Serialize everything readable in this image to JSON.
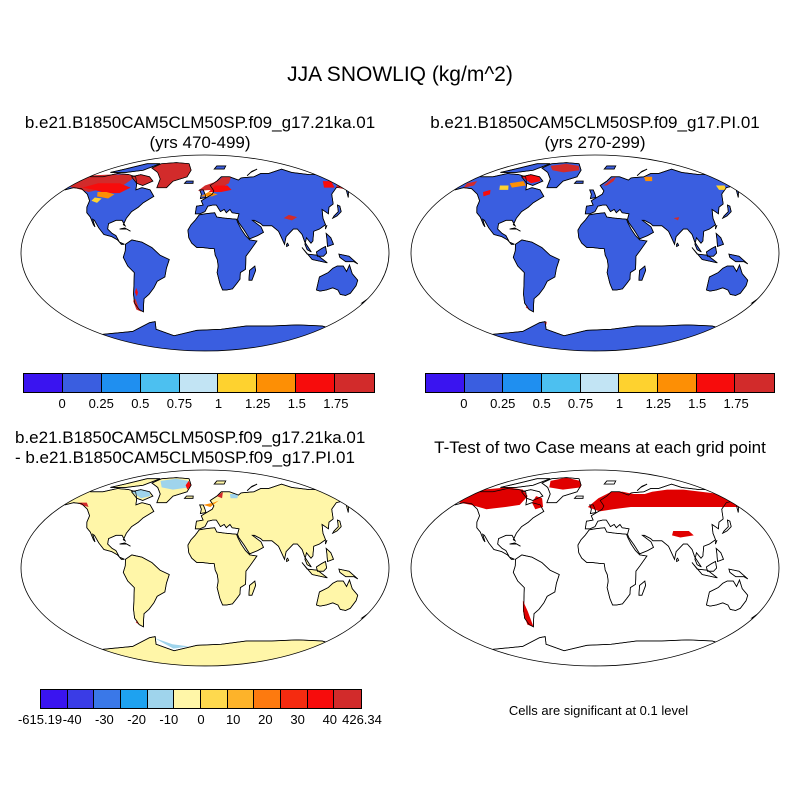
{
  "title": "JJA SNOWLIQ (kg/m^2)",
  "panels": {
    "top_left": {
      "title_line1": "b.e21.B1850CAM5CLM50SP.f09_g17.21ka.01",
      "title_line2": "(yrs 470-499)"
    },
    "top_right": {
      "title_line1": "b.e21.B1850CAM5CLM50SP.f09_g17.PI.01",
      "title_line2": "(yrs 270-299)"
    },
    "bottom_left": {
      "title_line1": "b.e21.B1850CAM5CLM50SP.f09_g17.21ka.01",
      "title_line2": "- b.e21.B1850CAM5CLM50SP.f09_g17.PI.01"
    },
    "bottom_right": {
      "title_line1": "T-Test of two Case means at each grid point",
      "note": "Cells are significant at 0.1 level"
    }
  },
  "colorbars": {
    "absolute": {
      "colors": [
        "#3a14f0",
        "#3a5ee0",
        "#1f8ff0",
        "#4cc0f0",
        "#c2e4f4",
        "#fed22f",
        "#fd8f05",
        "#f70c0c",
        "#d22b2b"
      ],
      "labels": [
        "0",
        "0.25",
        "0.5",
        "0.75",
        "1",
        "1.25",
        "1.5",
        "1.75"
      ]
    },
    "difference": {
      "colors": [
        "#3a14f0",
        "#3a3ce6",
        "#3a78e8",
        "#1ea2f0",
        "#9fd4ec",
        "#fff6a8",
        "#fed94e",
        "#fdb32a",
        "#fd7a0f",
        "#f52b10",
        "#f70c0c",
        "#d22b2b"
      ],
      "labels": [
        "-615.19",
        "-40",
        "-30",
        "-20",
        "-10",
        "0",
        "10",
        "20",
        "30",
        "40",
        "426.34"
      ]
    }
  },
  "map_colors": {
    "ocean": "#ffffff",
    "land_abs": "#3a5ee0",
    "land_diff": "#fff6a8",
    "snow_high": "#d22b2b",
    "snow_mid": "#f70c0c",
    "snow_orange": "#fd8f05",
    "snow_yellow": "#fed22f",
    "diff_neg": "#9fd4ec",
    "sig": "#e00000"
  }
}
